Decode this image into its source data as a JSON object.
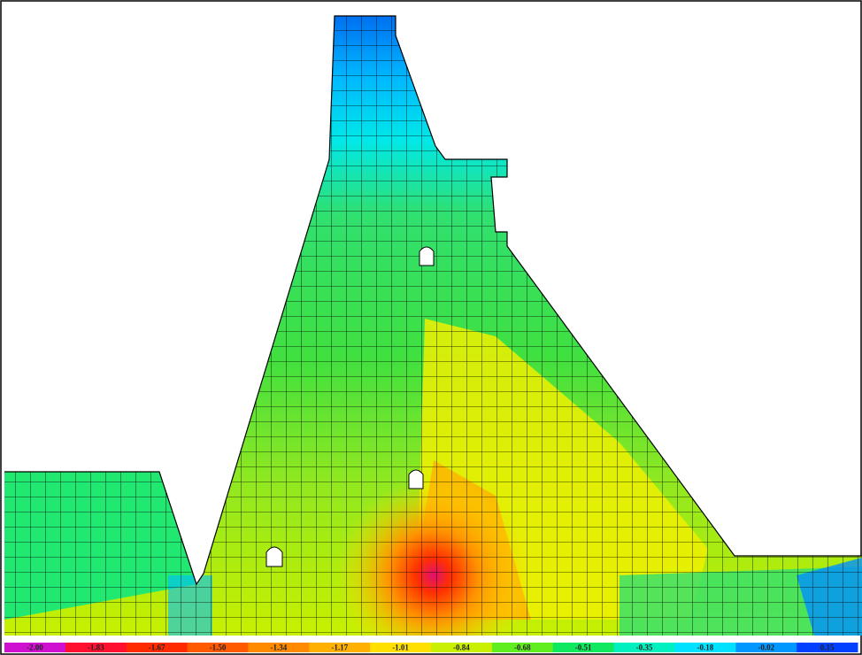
{
  "chart_data": {
    "type": "contour",
    "colorbar": {
      "ticks": [
        {
          "value": -2,
          "label": "-2.00"
        },
        -1.83,
        -1.67,
        {
          "value": -1.5,
          "label": "-1.50"
        },
        -1.34,
        -1.17,
        -1.01,
        -0.84,
        -0.68,
        -0.51,
        -0.35,
        -0.18,
        -0.02,
        0.15
      ],
      "colors": [
        "#d010d0",
        "#ff1030",
        "#ff2a00",
        "#ff5a00",
        "#ff8a00",
        "#ffb000",
        "#ffe000",
        "#c8f000",
        "#60ee20",
        "#10e860",
        "#00f0c0",
        "#00e0ff",
        "#0098ff",
        "#0040ff"
      ]
    }
  }
}
